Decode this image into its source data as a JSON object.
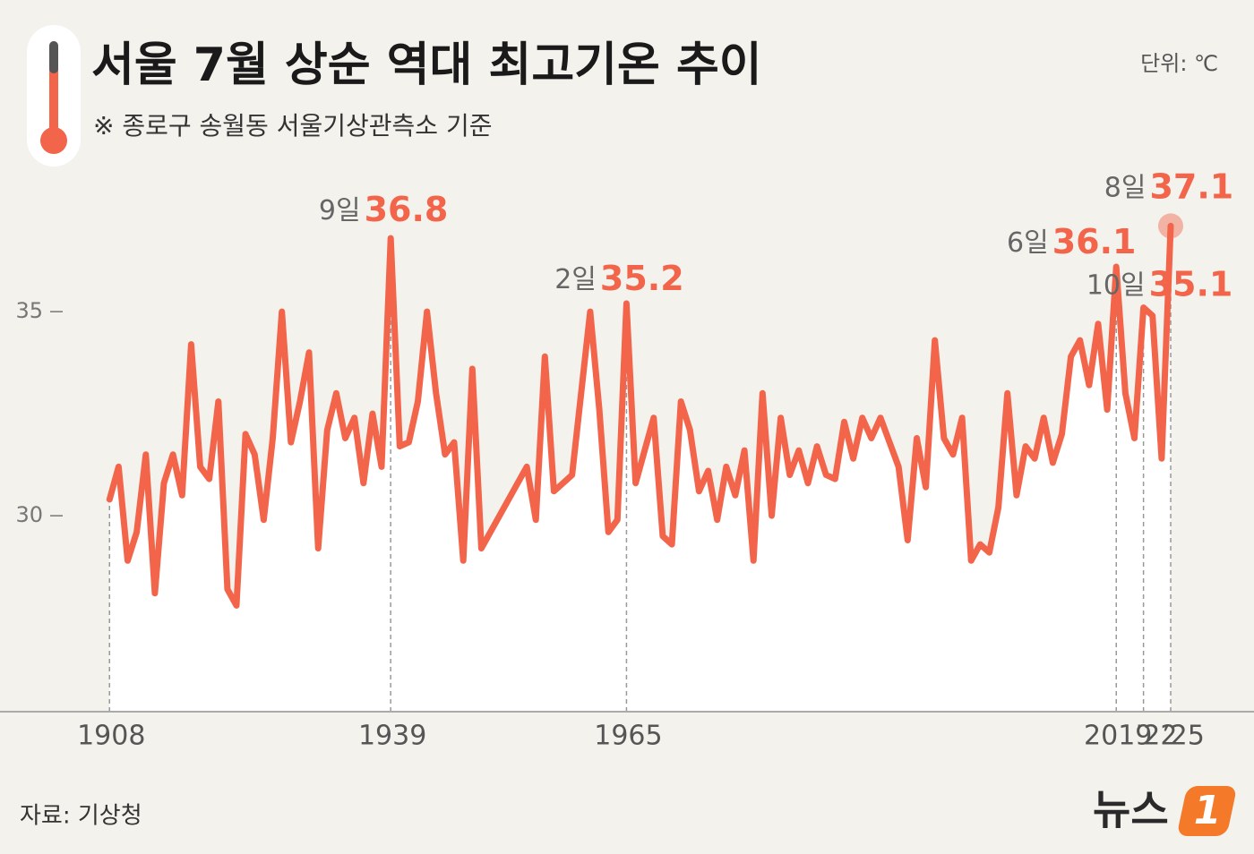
{
  "chart_data": {
    "type": "line",
    "title": "서울 7월 상순 역대 최고기온 추이",
    "subtitle": "※ 종로구 송월동 서울기상관측소 기준",
    "unit": "단위: ℃",
    "source": "자료: 기상청",
    "logo": {
      "text": "뉴스",
      "mark": "1"
    },
    "color": "#f2654b",
    "x": [
      1908,
      1909,
      1910,
      1911,
      1912,
      1913,
      1914,
      1915,
      1916,
      1917,
      1918,
      1919,
      1920,
      1921,
      1922,
      1923,
      1924,
      1925,
      1926,
      1927,
      1928,
      1929,
      1930,
      1931,
      1932,
      1933,
      1934,
      1935,
      1936,
      1937,
      1938,
      1939,
      1940,
      1941,
      1942,
      1943,
      1944,
      1945,
      1946,
      1947,
      1948,
      1949,
      1954,
      1955,
      1956,
      1957,
      1958,
      1959,
      1960,
      1961,
      1962,
      1963,
      1964,
      1965,
      1966,
      1967,
      1968,
      1969,
      1970,
      1971,
      1972,
      1973,
      1974,
      1975,
      1976,
      1977,
      1978,
      1979,
      1980,
      1981,
      1982,
      1983,
      1984,
      1985,
      1986,
      1987,
      1988,
      1989,
      1990,
      1991,
      1992,
      1993,
      1994,
      1995,
      1996,
      1997,
      1998,
      1999,
      2000,
      2001,
      2002,
      2003,
      2004,
      2005,
      2006,
      2007,
      2008,
      2009,
      2010,
      2011,
      2012,
      2013,
      2014,
      2015,
      2016,
      2017,
      2018,
      2019,
      2020,
      2021,
      2022,
      2023,
      2024,
      2025
    ],
    "values": [
      30.4,
      31.2,
      28.9,
      29.6,
      31.5,
      28.1,
      30.8,
      31.5,
      30.5,
      34.2,
      31.2,
      30.9,
      32.8,
      28.2,
      27.8,
      32.0,
      31.5,
      29.9,
      31.9,
      35.0,
      31.8,
      32.8,
      34.0,
      29.2,
      32.1,
      33.0,
      31.9,
      32.4,
      30.8,
      32.5,
      31.2,
      36.8,
      31.7,
      31.8,
      32.8,
      35.0,
      33.0,
      31.5,
      31.8,
      28.9,
      33.6,
      29.2,
      31.2,
      29.9,
      33.9,
      30.6,
      30.8,
      31.0,
      33.0,
      35.0,
      32.6,
      29.6,
      29.9,
      35.2,
      30.8,
      31.6,
      32.4,
      29.5,
      29.3,
      32.8,
      32.1,
      30.6,
      31.1,
      29.9,
      31.2,
      30.5,
      31.6,
      28.9,
      33.0,
      30.0,
      32.4,
      31.0,
      31.6,
      30.8,
      31.7,
      31.0,
      30.9,
      32.3,
      31.4,
      32.4,
      31.9,
      32.4,
      31.8,
      31.2,
      29.4,
      31.9,
      30.7,
      34.3,
      31.9,
      31.5,
      32.4,
      28.9,
      29.3,
      29.1,
      30.2,
      33.0,
      30.5,
      31.7,
      31.4,
      32.4,
      31.3,
      32.0,
      33.9,
      34.3,
      33.2,
      34.7,
      32.6,
      36.1,
      33.0,
      31.9,
      35.1,
      34.9,
      31.4,
      37.1
    ],
    "xlim": [
      1898,
      2033
    ],
    "ylim": [
      25.2,
      38.6
    ],
    "xticks": [
      1908,
      1939,
      1965,
      2019,
      {
        "value": 2022,
        "label": "’22"
      },
      {
        "value": 2025,
        "label": "’25"
      }
    ],
    "yticks": [
      30,
      35
    ],
    "annotations": [
      {
        "x": 1939,
        "day": "9일",
        "value": 36.8
      },
      {
        "x": 1965,
        "day": "2일",
        "value": 35.2
      },
      {
        "x": 2019,
        "day": "6일",
        "value": 36.1
      },
      {
        "x": 2022,
        "day": "10일",
        "value": 35.1
      },
      {
        "x": 2025,
        "day": "8일",
        "value": 37.1,
        "highlight": true
      }
    ]
  }
}
